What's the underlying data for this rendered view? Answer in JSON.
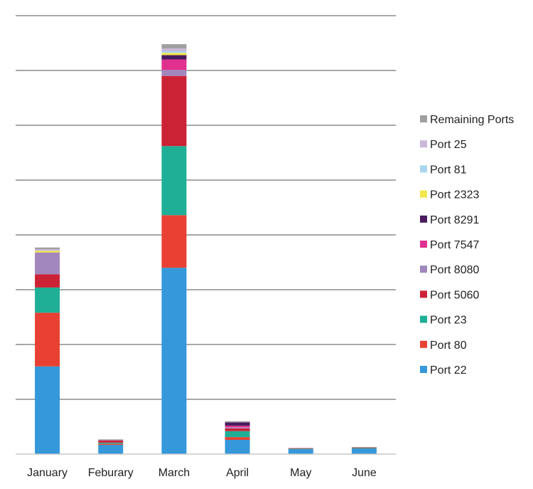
{
  "chart_data": {
    "type": "bar",
    "stacked": true,
    "title": "",
    "xlabel": "",
    "ylabel": "",
    "grid": true,
    "y_axis_labels_shown": false,
    "ylim": [
      0,
      800
    ],
    "legend_position": "right",
    "categories": [
      "January",
      "Feburary",
      "March",
      "April",
      "May",
      "June"
    ],
    "series": [
      {
        "name": "Port 22",
        "color": "#3498DB",
        "values": [
          160,
          17,
          340,
          26,
          9,
          10
        ]
      },
      {
        "name": "Port 80",
        "color": "#E84133",
        "values": [
          98,
          2,
          96,
          5,
          0,
          0
        ]
      },
      {
        "name": "Port 23",
        "color": "#1FAF96",
        "values": [
          46,
          2,
          126,
          11,
          1,
          1
        ]
      },
      {
        "name": "Port 5060",
        "color": "#CC2235",
        "values": [
          24,
          4,
          128,
          5,
          1,
          1
        ]
      },
      {
        "name": "Port 8080",
        "color": "#A187BE",
        "values": [
          40,
          1,
          11,
          2,
          0,
          0
        ]
      },
      {
        "name": "Port 7547",
        "color": "#E0318F",
        "values": [
          0,
          0,
          19,
          3,
          0,
          0
        ]
      },
      {
        "name": "Port 8291",
        "color": "#4A1A5E",
        "values": [
          0,
          0,
          8,
          6,
          0,
          0
        ]
      },
      {
        "name": "Port 2323",
        "color": "#F2E74A",
        "values": [
          3,
          0,
          4,
          0,
          0,
          0
        ]
      },
      {
        "name": "Port 81",
        "color": "#A9D6EE",
        "values": [
          0,
          0,
          3,
          0,
          0,
          0
        ]
      },
      {
        "name": "Port 25",
        "color": "#C9B8DA",
        "values": [
          3,
          0,
          5,
          0,
          0,
          0
        ]
      },
      {
        "name": "Remaining Ports",
        "color": "#A0A0A0",
        "values": [
          3,
          1,
          8,
          2,
          0,
          1
        ]
      }
    ]
  }
}
